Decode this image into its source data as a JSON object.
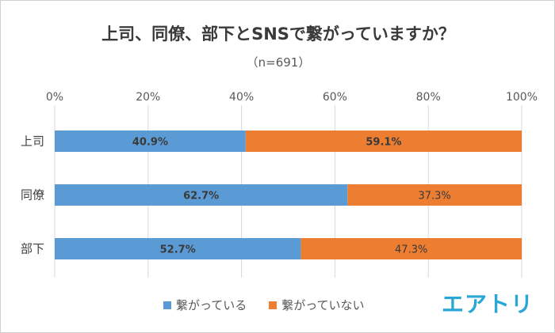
{
  "chart_data": {
    "type": "bar",
    "orientation": "horizontal",
    "stacked": true,
    "title": "上司、同僚、部下とSNSで繋がっていますか？",
    "subtitle": "（n=691）",
    "categories": [
      "上司",
      "同僚",
      "部下"
    ],
    "series": [
      {
        "name": "繋がっている",
        "values": [
          40.9,
          62.7,
          52.7
        ],
        "labels": [
          "40.9%",
          "62.7%",
          "52.7%"
        ],
        "color": "#5b9bd5"
      },
      {
        "name": "繋がっていない",
        "values": [
          59.1,
          37.3,
          47.3
        ],
        "labels": [
          "59.1%",
          "37.3%",
          "47.3%"
        ],
        "color": "#ed7d31"
      }
    ],
    "xticks": [
      "0%",
      "20%",
      "40%",
      "60%",
      "80%",
      "100%"
    ],
    "xlim": [
      0,
      100
    ],
    "grid": true,
    "legend_position": "bottom"
  },
  "logo_text": "エアトリ",
  "colors": {
    "logo": "#2aa7d4",
    "grid": "#d9d9d9",
    "axis_text": "#595959"
  }
}
